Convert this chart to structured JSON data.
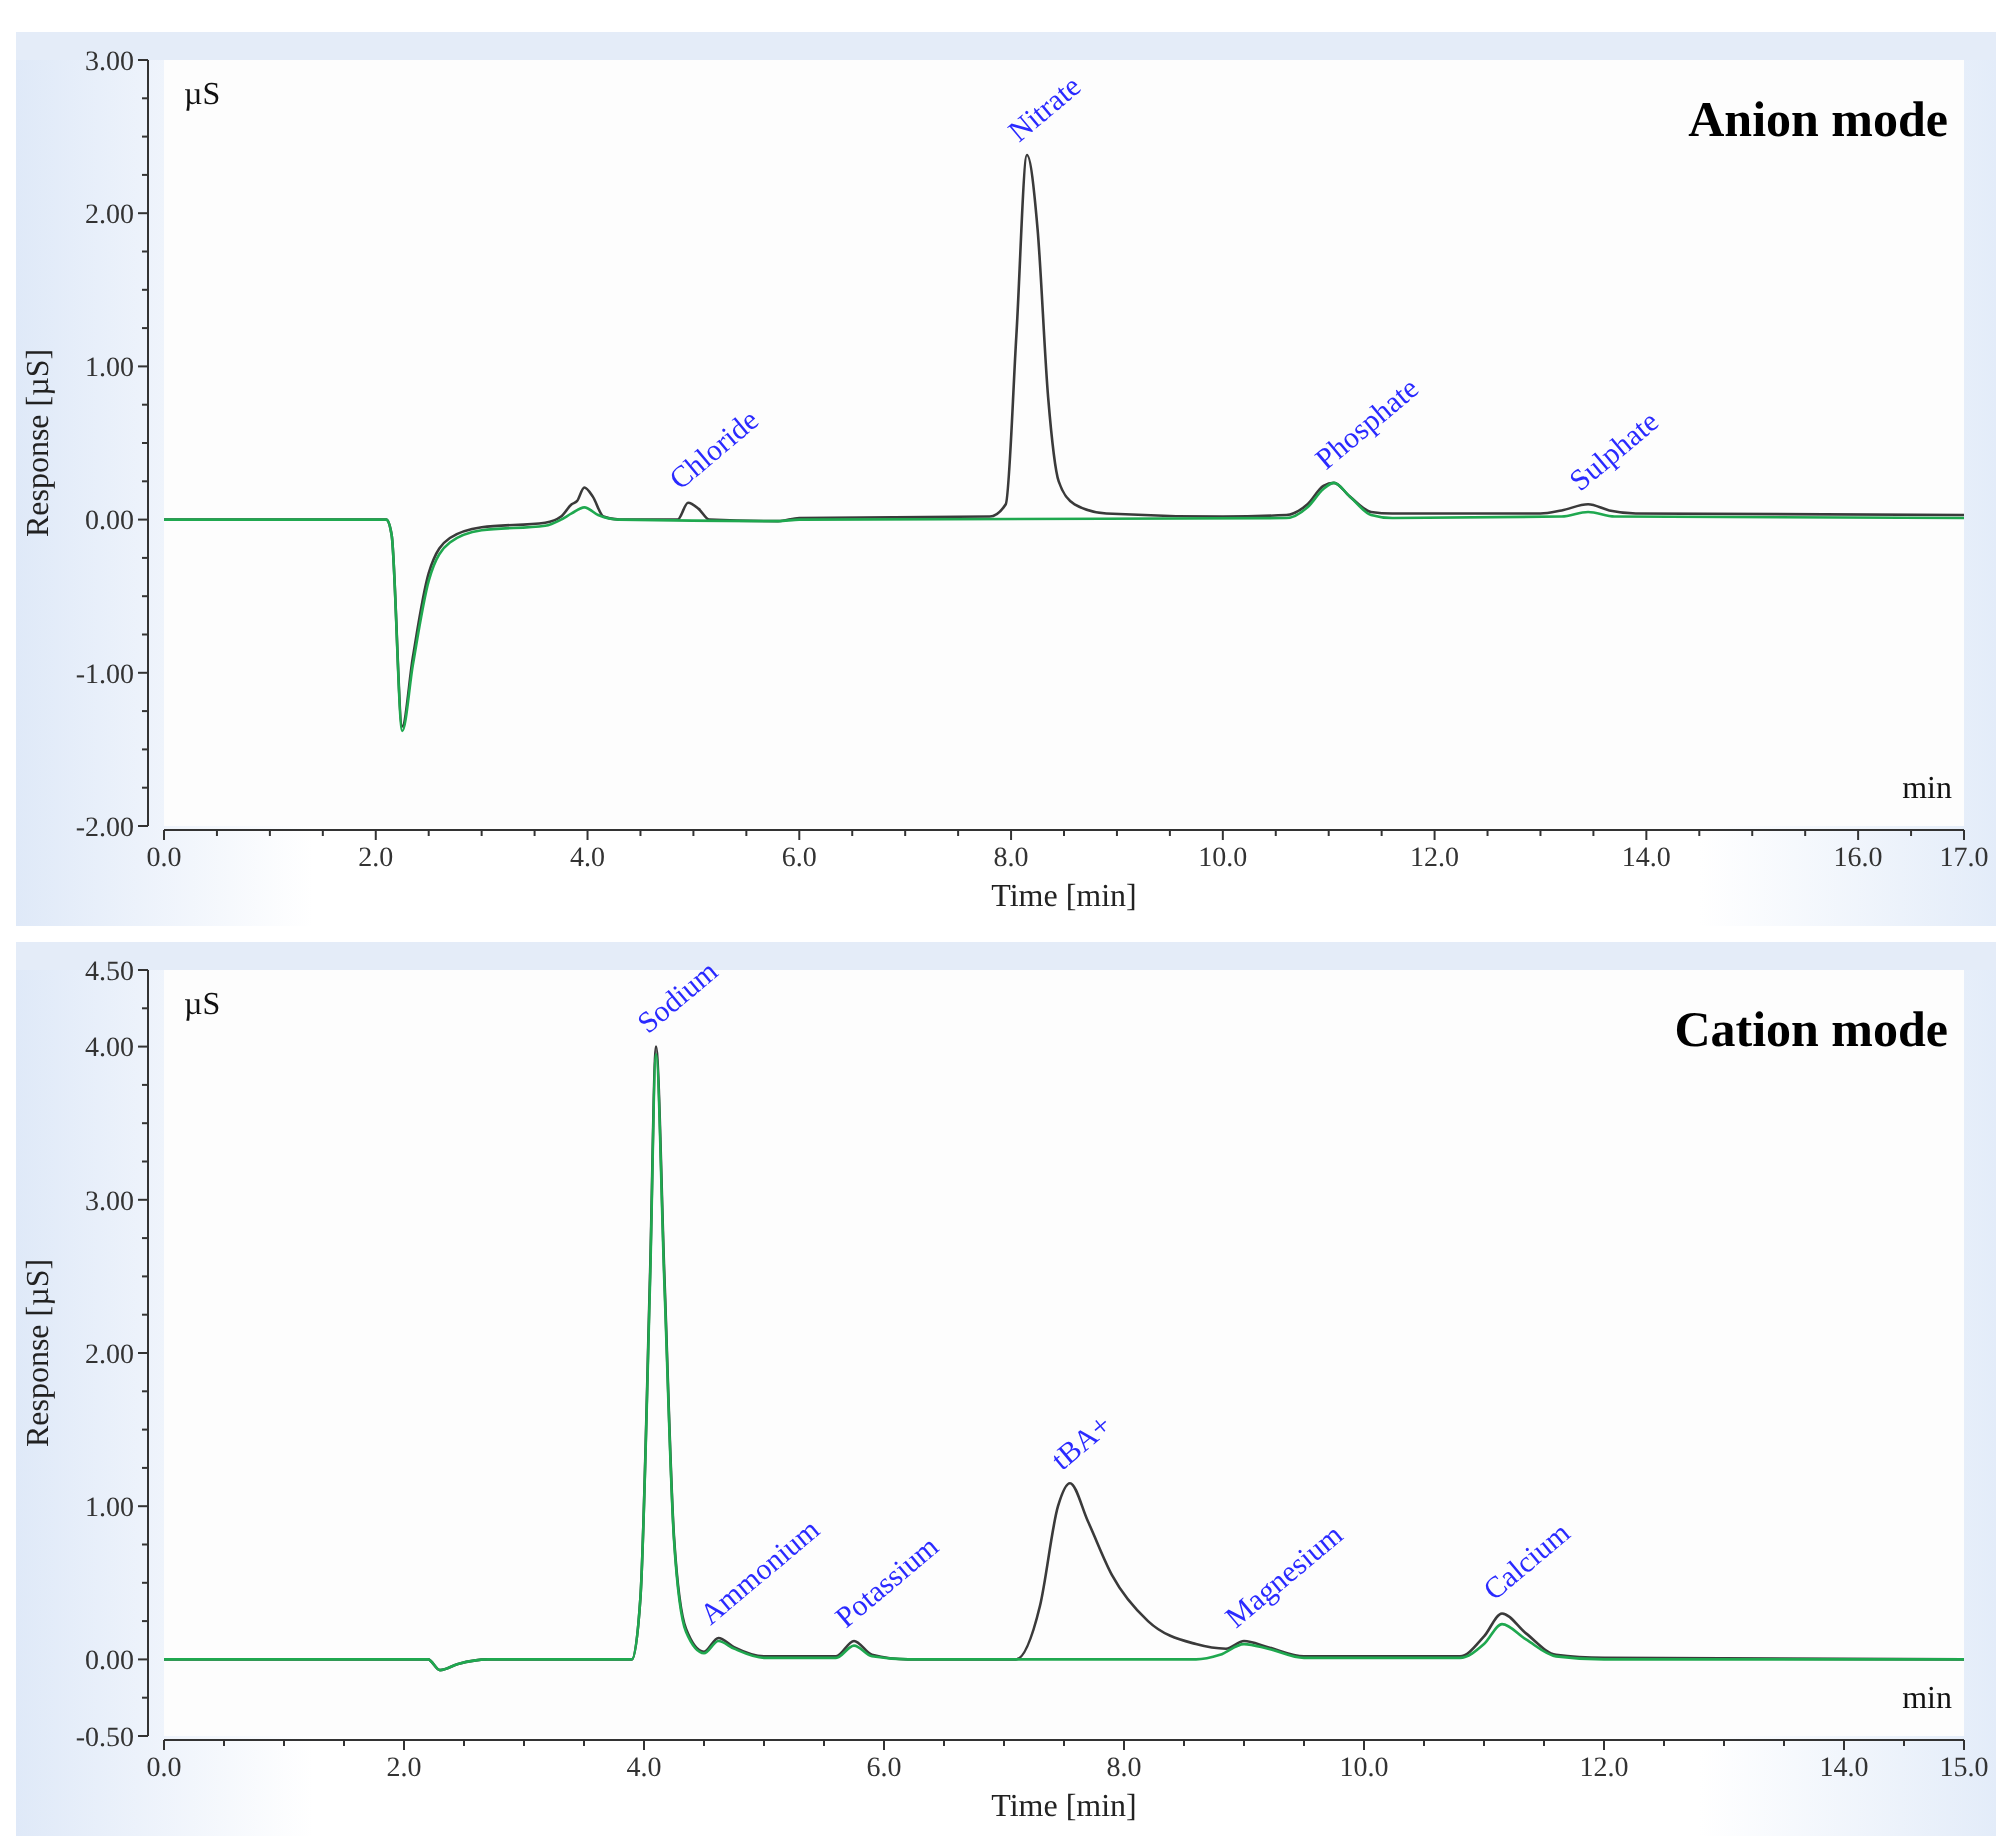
{
  "chart_data": [
    {
      "type": "line",
      "title": "Anion mode",
      "xlabel": "Time [min]",
      "ylabel": "Response [µS]",
      "grid": false,
      "marker": "none",
      "line_style": "solid",
      "xlim": [
        0,
        17
      ],
      "ylim": [
        -2,
        3
      ],
      "xticks": [
        {
          "value": 0,
          "label": "0.0"
        },
        {
          "value": 0.5,
          "label": null
        },
        {
          "value": 1,
          "label": null
        },
        {
          "value": 1.5,
          "label": null
        },
        {
          "value": 2,
          "label": "2.0"
        },
        {
          "value": 2.5,
          "label": null
        },
        {
          "value": 3,
          "label": null
        },
        {
          "value": 3.5,
          "label": null
        },
        {
          "value": 4,
          "label": "4.0"
        },
        {
          "value": 4.5,
          "label": null
        },
        {
          "value": 5,
          "label": null
        },
        {
          "value": 5.5,
          "label": null
        },
        {
          "value": 6,
          "label": "6.0"
        },
        {
          "value": 6.5,
          "label": null
        },
        {
          "value": 7,
          "label": null
        },
        {
          "value": 7.5,
          "label": null
        },
        {
          "value": 8,
          "label": "8.0"
        },
        {
          "value": 8.5,
          "label": null
        },
        {
          "value": 9,
          "label": null
        },
        {
          "value": 9.5,
          "label": null
        },
        {
          "value": 10,
          "label": "10.0"
        },
        {
          "value": 10.5,
          "label": null
        },
        {
          "value": 11,
          "label": null
        },
        {
          "value": 11.5,
          "label": null
        },
        {
          "value": 12,
          "label": "12.0"
        },
        {
          "value": 12.5,
          "label": null
        },
        {
          "value": 13,
          "label": null
        },
        {
          "value": 13.5,
          "label": null
        },
        {
          "value": 14,
          "label": "14.0"
        },
        {
          "value": 14.5,
          "label": null
        },
        {
          "value": 15,
          "label": null
        },
        {
          "value": 15.5,
          "label": null
        },
        {
          "value": 16,
          "label": "16.0"
        },
        {
          "value": 16.5,
          "label": null
        },
        {
          "value": 17,
          "label": "17.0"
        }
      ],
      "yticks": [
        {
          "value": -2,
          "label": "-2.00"
        },
        {
          "value": -1.75,
          "label": null
        },
        {
          "value": -1.5,
          "label": null
        },
        {
          "value": -1.25,
          "label": null
        },
        {
          "value": -1,
          "label": "-1.00"
        },
        {
          "value": -0.75,
          "label": null
        },
        {
          "value": -0.5,
          "label": null
        },
        {
          "value": -0.25,
          "label": null
        },
        {
          "value": 0,
          "label": "0.00"
        },
        {
          "value": 0.25,
          "label": null
        },
        {
          "value": 0.5,
          "label": null
        },
        {
          "value": 0.75,
          "label": null
        },
        {
          "value": 1,
          "label": "1.00"
        },
        {
          "value": 1.25,
          "label": null
        },
        {
          "value": 1.5,
          "label": null
        },
        {
          "value": 1.75,
          "label": null
        },
        {
          "value": 2,
          "label": "2.00"
        },
        {
          "value": 2.25,
          "label": null
        },
        {
          "value": 2.5,
          "label": null
        },
        {
          "value": 2.75,
          "label": null
        },
        {
          "value": 3,
          "label": "3.00"
        }
      ],
      "annotations": [
        "µS",
        "min",
        {
          "text": "Chloride",
          "x": 4.95,
          "y": 0.11
        },
        {
          "text": "Nitrate",
          "x": 8.15,
          "y": 2.38
        },
        {
          "text": "Phosphate",
          "x": 11.05,
          "y": 0.24
        },
        {
          "text": "Sulphate",
          "x": 13.45,
          "y": 0.1
        }
      ],
      "series": [
        {
          "color": "#3a3a3a",
          "x": [
            0,
            2.1,
            2.15,
            2.25,
            2.35,
            2.5,
            2.7,
            3.0,
            3.6,
            3.75,
            3.85,
            3.9,
            3.97,
            4.05,
            4.15,
            4.3,
            4.85,
            4.95,
            5.05,
            5.15,
            5.8,
            6.0,
            7.8,
            7.95,
            8.05,
            8.15,
            8.25,
            8.35,
            8.45,
            8.6,
            8.9,
            10.0,
            10.6,
            10.8,
            10.95,
            11.05,
            11.2,
            11.4,
            11.6,
            13.0,
            13.2,
            13.45,
            13.65,
            13.9,
            17
          ],
          "values": [
            0,
            0,
            -0.1,
            -1.35,
            -0.9,
            -0.35,
            -0.12,
            -0.05,
            -0.02,
            0.02,
            0.1,
            0.12,
            0.21,
            0.15,
            0.02,
            0,
            0,
            0.11,
            0.07,
            0,
            -0.01,
            0.01,
            0.02,
            0.1,
            1.2,
            2.38,
            1.9,
            0.8,
            0.25,
            0.1,
            0.04,
            0.02,
            0.03,
            0.1,
            0.22,
            0.24,
            0.15,
            0.05,
            0.04,
            0.04,
            0.06,
            0.1,
            0.06,
            0.04,
            0.03
          ]
        },
        {
          "color": "#1fa84f",
          "x": [
            0,
            2.1,
            2.15,
            2.25,
            2.35,
            2.5,
            2.7,
            3.0,
            3.6,
            3.75,
            3.85,
            3.97,
            4.1,
            4.3,
            5.8,
            6.0,
            10.6,
            10.8,
            10.95,
            11.05,
            11.2,
            11.4,
            11.6,
            13.2,
            13.45,
            13.7,
            17
          ],
          "values": [
            0,
            0,
            -0.1,
            -1.38,
            -0.95,
            -0.4,
            -0.15,
            -0.07,
            -0.04,
            0,
            0.04,
            0.08,
            0.03,
            0,
            -0.01,
            0,
            0.01,
            0.08,
            0.2,
            0.24,
            0.15,
            0.03,
            0.01,
            0.02,
            0.05,
            0.02,
            0.01
          ]
        }
      ]
    },
    {
      "type": "line",
      "title": "Cation mode",
      "xlabel": "Time [min]",
      "ylabel": "Response [µS]",
      "grid": false,
      "marker": "none",
      "line_style": "solid",
      "xlim": [
        0,
        15
      ],
      "ylim": [
        -0.5,
        4.5
      ],
      "xticks": [
        {
          "value": 0,
          "label": "0.0"
        },
        {
          "value": 0.5,
          "label": null
        },
        {
          "value": 1,
          "label": null
        },
        {
          "value": 1.5,
          "label": null
        },
        {
          "value": 2,
          "label": "2.0"
        },
        {
          "value": 2.5,
          "label": null
        },
        {
          "value": 3,
          "label": null
        },
        {
          "value": 3.5,
          "label": null
        },
        {
          "value": 4,
          "label": "4.0"
        },
        {
          "value": 4.5,
          "label": null
        },
        {
          "value": 5,
          "label": null
        },
        {
          "value": 5.5,
          "label": null
        },
        {
          "value": 6,
          "label": "6.0"
        },
        {
          "value": 6.5,
          "label": null
        },
        {
          "value": 7,
          "label": null
        },
        {
          "value": 7.5,
          "label": null
        },
        {
          "value": 8,
          "label": "8.0"
        },
        {
          "value": 8.5,
          "label": null
        },
        {
          "value": 9,
          "label": null
        },
        {
          "value": 9.5,
          "label": null
        },
        {
          "value": 10,
          "label": "10.0"
        },
        {
          "value": 10.5,
          "label": null
        },
        {
          "value": 11,
          "label": null
        },
        {
          "value": 11.5,
          "label": null
        },
        {
          "value": 12,
          "label": "12.0"
        },
        {
          "value": 12.5,
          "label": null
        },
        {
          "value": 13,
          "label": null
        },
        {
          "value": 13.5,
          "label": null
        },
        {
          "value": 14,
          "label": "14.0"
        },
        {
          "value": 14.5,
          "label": null
        },
        {
          "value": 15,
          "label": "15.0"
        }
      ],
      "yticks": [
        {
          "value": -0.5,
          "label": "-0.50"
        },
        {
          "value": -0.25,
          "label": null
        },
        {
          "value": 0,
          "label": "0.00"
        },
        {
          "value": 0.25,
          "label": null
        },
        {
          "value": 0.5,
          "label": null
        },
        {
          "value": 0.75,
          "label": null
        },
        {
          "value": 1,
          "label": "1.00"
        },
        {
          "value": 1.25,
          "label": null
        },
        {
          "value": 1.5,
          "label": null
        },
        {
          "value": 1.75,
          "label": null
        },
        {
          "value": 2,
          "label": "2.00"
        },
        {
          "value": 2.25,
          "label": null
        },
        {
          "value": 2.5,
          "label": null
        },
        {
          "value": 2.75,
          "label": null
        },
        {
          "value": 3,
          "label": "3.00"
        },
        {
          "value": 3.25,
          "label": null
        },
        {
          "value": 3.5,
          "label": null
        },
        {
          "value": 3.75,
          "label": null
        },
        {
          "value": 4,
          "label": "4.00"
        },
        {
          "value": 4.25,
          "label": null
        },
        {
          "value": 4.5,
          "label": "4.50"
        }
      ],
      "annotations": [
        "µS",
        "min",
        {
          "text": "Sodium",
          "x": 4.1,
          "y": 4.0
        },
        {
          "text": "Ammonium",
          "x": 4.62,
          "y": 0.14
        },
        {
          "text": "Potassium",
          "x": 5.75,
          "y": 0.12
        },
        {
          "text": "tBA+",
          "x": 7.55,
          "y": 1.15
        },
        {
          "text": "Magnesium",
          "x": 9.0,
          "y": 0.12
        },
        {
          "text": "Calcium",
          "x": 11.15,
          "y": 0.3
        }
      ],
      "series": [
        {
          "color": "#3a3a3a",
          "x": [
            0,
            2.2,
            2.3,
            2.45,
            2.7,
            3.9,
            3.97,
            4.05,
            4.1,
            4.17,
            4.25,
            4.35,
            4.5,
            4.62,
            4.75,
            5.0,
            5.6,
            5.75,
            5.9,
            6.2,
            7.1,
            7.3,
            7.45,
            7.55,
            7.7,
            7.9,
            8.2,
            8.6,
            8.85,
            9.0,
            9.2,
            9.5,
            10.8,
            11.0,
            11.15,
            11.35,
            11.6,
            12.0,
            15
          ],
          "values": [
            0,
            0,
            -0.07,
            -0.03,
            0,
            0,
            0.4,
            2.5,
            4.0,
            2.5,
            0.8,
            0.2,
            0.05,
            0.14,
            0.08,
            0.02,
            0.02,
            0.12,
            0.03,
            0,
            0,
            0.35,
            1.0,
            1.15,
            0.9,
            0.55,
            0.25,
            0.1,
            0.07,
            0.12,
            0.08,
            0.02,
            0.02,
            0.15,
            0.3,
            0.17,
            0.03,
            0.01,
            0
          ]
        },
        {
          "color": "#1fa84f",
          "x": [
            0,
            2.2,
            2.3,
            2.45,
            2.7,
            3.9,
            3.97,
            4.05,
            4.1,
            4.17,
            4.25,
            4.35,
            4.5,
            4.62,
            4.75,
            5.0,
            5.6,
            5.75,
            5.9,
            6.2,
            8.6,
            8.8,
            9.0,
            9.2,
            9.5,
            10.8,
            11.0,
            11.15,
            11.35,
            11.6,
            12.0,
            15
          ],
          "values": [
            0,
            0,
            -0.07,
            -0.03,
            0,
            0,
            0.4,
            2.45,
            3.95,
            2.45,
            0.78,
            0.18,
            0.04,
            0.12,
            0.07,
            0.01,
            0.01,
            0.09,
            0.02,
            0,
            0,
            0.03,
            0.1,
            0.07,
            0.01,
            0.01,
            0.1,
            0.23,
            0.13,
            0.02,
            0,
            0
          ]
        }
      ]
    }
  ]
}
